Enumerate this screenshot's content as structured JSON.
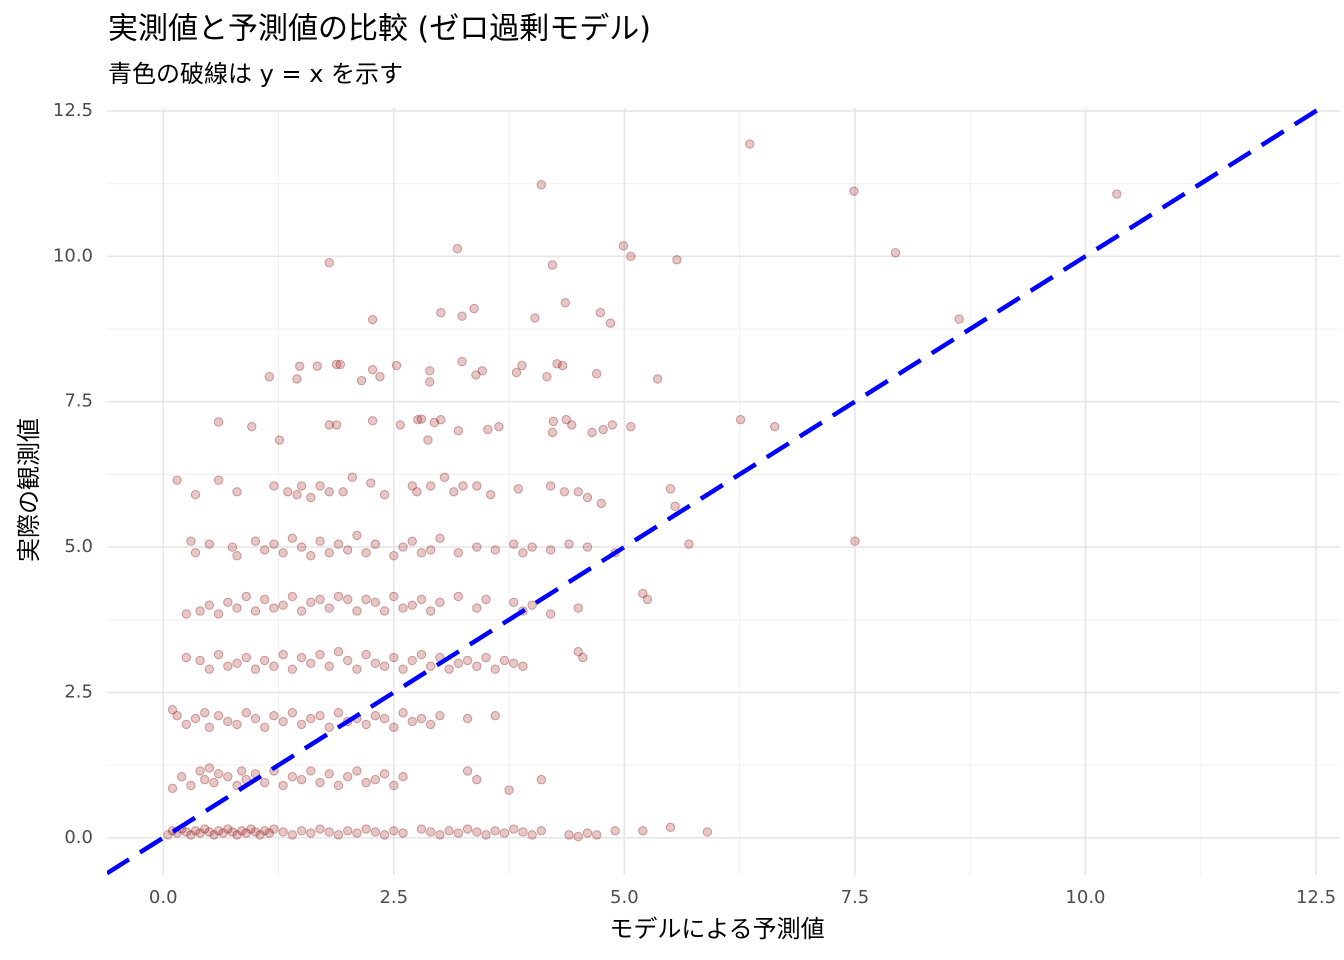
{
  "chart_data": {
    "type": "scatter",
    "title": "実測値と予測値の比較 (ゼロ過剰モデル)",
    "subtitle": "青色の破線は y = x を示す",
    "x_label": "モデルによる予測値",
    "y_label": "実際の観測値",
    "xlim": [
      -0.61,
      12.76
    ],
    "ylim": [
      -0.64,
      12.55
    ],
    "xticks": [
      {
        "value": 0,
        "label": "0.0"
      },
      2.5,
      {
        "value": 5,
        "label": "5.0"
      },
      7.5,
      {
        "value": 10,
        "label": "10.0"
      },
      12.5
    ],
    "yticks": [
      {
        "value": 0,
        "label": "0.0"
      },
      2.5,
      {
        "value": 5,
        "label": "5.0"
      },
      7.5,
      {
        "value": 10,
        "label": "10.0"
      },
      12.5
    ],
    "grid": true,
    "reference_line": {
      "slope": 1,
      "intercept": 0,
      "color": "#0000ff",
      "dashed": true
    },
    "color": "#8b0000",
    "x": [
      6.36,
      4.1,
      7.49,
      10.34,
      3.19,
      4.99,
      5.07,
      5.57,
      7.94,
      1.8,
      4.22,
      4.36,
      3.37,
      3.01,
      3.24,
      4.03,
      4.74,
      4.85,
      2.27,
      8.63,
      1.15,
      1.45,
      1.48,
      1.67,
      1.88,
      1.92,
      2.15,
      2.27,
      2.35,
      2.53,
      2.89,
      2.89,
      3.24,
      3.39,
      3.46,
      3.83,
      3.89,
      4.16,
      4.27,
      4.33,
      4.7,
      5.36,
      0.6,
      0.96,
      1.26,
      1.8,
      1.88,
      2.27,
      2.57,
      2.76,
      2.8,
      2.87,
      2.94,
      3.01,
      3.2,
      3.52,
      3.64,
      4.22,
      4.23,
      4.37,
      4.43,
      4.65,
      4.77,
      4.87,
      5.07,
      6.26,
      6.63,
      0.15,
      0.35,
      0.6,
      0.8,
      1.2,
      1.35,
      1.45,
      1.5,
      1.6,
      1.7,
      1.8,
      1.95,
      2.05,
      2.25,
      2.4,
      2.7,
      2.75,
      2.9,
      3.05,
      3.15,
      3.25,
      3.4,
      3.55,
      3.85,
      4.2,
      4.35,
      4.5,
      4.6,
      4.75,
      5.5,
      5.55,
      0.3,
      0.35,
      0.5,
      0.75,
      0.8,
      1.0,
      1.1,
      1.2,
      1.3,
      1.4,
      1.5,
      1.6,
      1.7,
      1.8,
      1.9,
      2.0,
      2.1,
      2.2,
      2.3,
      2.5,
      2.6,
      2.7,
      2.8,
      2.9,
      3.0,
      3.2,
      3.4,
      3.6,
      3.8,
      3.9,
      4.0,
      4.2,
      4.4,
      4.6,
      4.9,
      5.7,
      7.5,
      0.25,
      0.4,
      0.5,
      0.6,
      0.7,
      0.8,
      0.9,
      1.0,
      1.1,
      1.2,
      1.3,
      1.4,
      1.5,
      1.6,
      1.7,
      1.8,
      1.9,
      2.0,
      2.1,
      2.2,
      2.3,
      2.4,
      2.5,
      2.6,
      2.7,
      2.8,
      2.9,
      3.0,
      3.2,
      3.4,
      3.5,
      3.8,
      3.9,
      4.0,
      4.2,
      4.5,
      5.2,
      5.25,
      0.25,
      0.4,
      0.5,
      0.6,
      0.7,
      0.8,
      0.9,
      1.0,
      1.1,
      1.2,
      1.3,
      1.4,
      1.5,
      1.6,
      1.7,
      1.8,
      1.9,
      2.0,
      2.1,
      2.2,
      2.3,
      2.4,
      2.5,
      2.6,
      2.7,
      2.8,
      2.9,
      3.0,
      3.1,
      3.2,
      3.3,
      3.4,
      3.5,
      3.6,
      3.7,
      3.8,
      3.9,
      4.5,
      4.55,
      0.1,
      0.15,
      0.25,
      0.35,
      0.45,
      0.5,
      0.6,
      0.7,
      0.8,
      0.9,
      1.0,
      1.1,
      1.2,
      1.3,
      1.4,
      1.5,
      1.6,
      1.7,
      1.8,
      1.9,
      2.0,
      2.1,
      2.2,
      2.3,
      2.4,
      2.5,
      2.6,
      2.7,
      2.8,
      2.9,
      3.0,
      3.3,
      3.6,
      0.1,
      0.2,
      0.3,
      0.4,
      0.45,
      0.5,
      0.55,
      0.6,
      0.7,
      0.8,
      0.85,
      0.9,
      1.0,
      1.1,
      1.2,
      1.3,
      1.4,
      1.5,
      1.6,
      1.7,
      1.8,
      1.9,
      2.0,
      2.1,
      2.2,
      2.3,
      2.4,
      2.5,
      2.6,
      3.3,
      3.4,
      3.75,
      4.1,
      0.05,
      0.1,
      0.15,
      0.2,
      0.25,
      0.3,
      0.35,
      0.4,
      0.45,
      0.5,
      0.55,
      0.6,
      0.65,
      0.7,
      0.75,
      0.8,
      0.85,
      0.9,
      0.95,
      1.0,
      1.05,
      1.1,
      1.15,
      1.2,
      1.3,
      1.4,
      1.5,
      1.6,
      1.7,
      1.8,
      1.9,
      2.0,
      2.1,
      2.2,
      2.3,
      2.4,
      2.5,
      2.6,
      2.8,
      2.9,
      3.0,
      3.1,
      3.2,
      3.3,
      3.4,
      3.5,
      3.6,
      3.7,
      3.8,
      3.9,
      4.0,
      4.1,
      4.4,
      4.5,
      4.6,
      4.7,
      4.9,
      5.2,
      5.5,
      5.9
    ],
    "values": [
      11.93,
      11.23,
      11.12,
      11.07,
      10.13,
      10.18,
      10.0,
      9.94,
      10.06,
      9.89,
      9.85,
      9.2,
      9.1,
      9.03,
      8.97,
      8.94,
      9.03,
      8.85,
      8.91,
      8.92,
      7.93,
      7.89,
      8.11,
      8.11,
      8.14,
      8.14,
      7.86,
      8.05,
      7.93,
      8.12,
      8.03,
      7.84,
      8.19,
      7.96,
      8.03,
      8.0,
      8.12,
      7.93,
      8.15,
      8.12,
      7.98,
      7.89,
      7.15,
      7.07,
      6.84,
      7.1,
      7.1,
      7.17,
      7.1,
      7.19,
      7.2,
      6.84,
      7.14,
      7.19,
      7.0,
      7.02,
      7.07,
      6.97,
      7.16,
      7.19,
      7.1,
      6.97,
      7.02,
      7.1,
      7.07,
      7.19,
      7.07,
      6.15,
      5.9,
      6.15,
      5.95,
      6.05,
      5.95,
      5.9,
      6.05,
      5.85,
      6.05,
      5.95,
      5.95,
      6.2,
      6.1,
      5.9,
      6.05,
      5.95,
      6.05,
      6.2,
      5.95,
      6.05,
      6.05,
      5.9,
      6.0,
      6.05,
      5.95,
      5.95,
      5.85,
      5.75,
      6.0,
      5.7,
      5.1,
      4.9,
      5.05,
      5.0,
      4.85,
      5.1,
      4.95,
      5.05,
      4.9,
      5.15,
      5.0,
      4.85,
      5.1,
      4.9,
      5.05,
      4.95,
      5.2,
      4.9,
      5.05,
      4.85,
      5.0,
      5.1,
      4.9,
      4.95,
      5.15,
      4.9,
      5.0,
      4.95,
      5.05,
      4.9,
      5.0,
      4.95,
      5.05,
      5.0,
      4.9,
      5.05,
      5.1,
      3.85,
      3.9,
      4.0,
      3.85,
      4.05,
      3.95,
      4.15,
      3.9,
      4.1,
      3.95,
      4.0,
      4.15,
      3.9,
      4.05,
      4.1,
      3.95,
      4.15,
      4.1,
      3.9,
      4.1,
      4.05,
      3.9,
      4.15,
      3.95,
      4.0,
      4.1,
      3.9,
      4.05,
      4.15,
      3.95,
      4.1,
      4.05,
      3.9,
      4.0,
      3.85,
      3.95,
      4.2,
      4.1,
      3.1,
      3.05,
      2.9,
      3.15,
      2.95,
      3.0,
      3.1,
      2.9,
      3.05,
      2.95,
      3.15,
      2.9,
      3.1,
      3.0,
      3.15,
      2.95,
      3.2,
      3.05,
      2.9,
      3.15,
      3.0,
      2.95,
      3.1,
      2.9,
      3.05,
      3.15,
      2.95,
      3.1,
      2.9,
      3.0,
      3.05,
      2.95,
      3.1,
      2.9,
      3.05,
      3.0,
      2.95,
      3.2,
      3.1,
      2.2,
      2.1,
      1.95,
      2.05,
      2.15,
      1.9,
      2.1,
      2.0,
      1.95,
      2.15,
      2.05,
      1.9,
      2.1,
      2.0,
      2.15,
      1.95,
      2.05,
      2.1,
      1.9,
      2.15,
      2.0,
      2.05,
      1.95,
      2.1,
      2.05,
      1.9,
      2.15,
      2.0,
      2.05,
      1.95,
      2.1,
      2.05,
      2.1,
      0.85,
      1.05,
      0.9,
      1.15,
      1.0,
      1.2,
      0.95,
      1.1,
      1.05,
      0.9,
      1.15,
      1.0,
      1.1,
      0.95,
      1.15,
      0.9,
      1.05,
      1.0,
      1.15,
      0.95,
      1.1,
      0.9,
      1.05,
      1.15,
      0.95,
      1.0,
      1.1,
      0.9,
      1.05,
      1.15,
      1.0,
      0.82,
      1.0,
      0.05,
      0.12,
      0.08,
      0.15,
      0.1,
      0.05,
      0.12,
      0.08,
      0.15,
      0.1,
      0.05,
      0.12,
      0.08,
      0.15,
      0.1,
      0.05,
      0.12,
      0.08,
      0.15,
      0.1,
      0.05,
      0.12,
      0.08,
      0.15,
      0.1,
      0.05,
      0.12,
      0.08,
      0.15,
      0.1,
      0.05,
      0.12,
      0.08,
      0.15,
      0.1,
      0.05,
      0.12,
      0.08,
      0.15,
      0.1,
      0.05,
      0.12,
      0.08,
      0.15,
      0.1,
      0.05,
      0.12,
      0.08,
      0.15,
      0.1,
      0.05,
      0.12,
      0.05,
      0.02,
      0.08,
      0.05,
      0.12,
      0.12,
      0.18,
      0.1
    ]
  }
}
